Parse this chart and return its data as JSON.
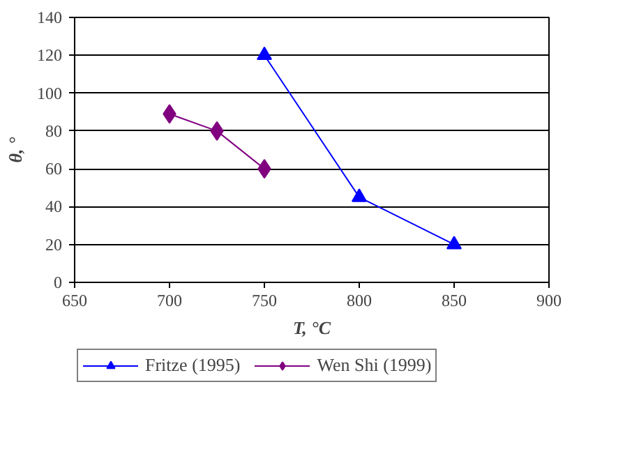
{
  "chart_data": {
    "type": "line",
    "xlabel": "T, °C",
    "ylabel": "θ, °",
    "xlim": [
      650,
      900
    ],
    "xticks": [
      650,
      700,
      750,
      800,
      850,
      900
    ],
    "ylim": [
      0,
      140
    ],
    "yticks": [
      0,
      20,
      40,
      60,
      80,
      100,
      120,
      140
    ],
    "grid": "y",
    "legend": "bottom",
    "series": [
      {
        "name": "Fritze (1995)",
        "color": "#0000ff",
        "marker": "triangle",
        "x": [
          750,
          800,
          850
        ],
        "values": [
          120,
          45,
          20
        ]
      },
      {
        "name": "Wen Shi (1999)",
        "color": "#800080",
        "marker": "diamond",
        "x": [
          700,
          725,
          750
        ],
        "values": [
          89,
          80,
          60
        ]
      }
    ]
  }
}
